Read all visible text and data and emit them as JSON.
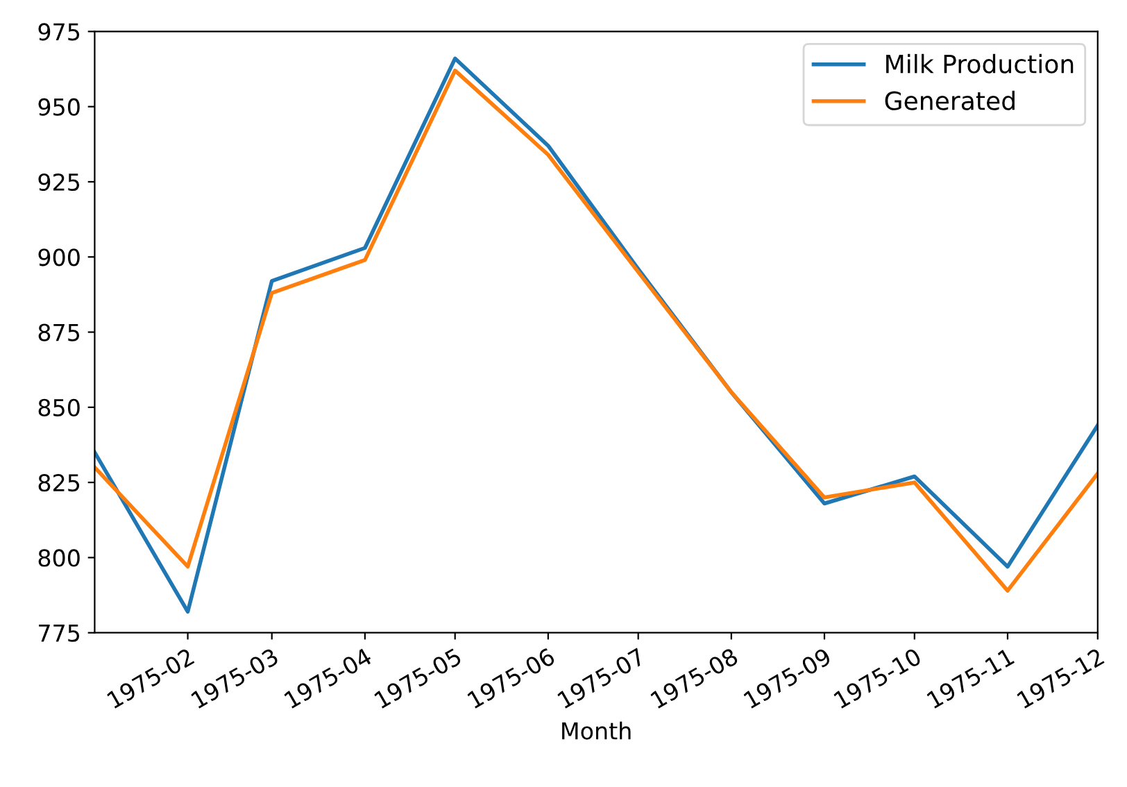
{
  "chart_data": {
    "type": "line",
    "xlabel": "Month",
    "x": [
      "1975-01",
      "1975-02",
      "1975-03",
      "1975-04",
      "1975-05",
      "1975-06",
      "1975-07",
      "1975-08",
      "1975-09",
      "1975-10",
      "1975-11",
      "1975-12"
    ],
    "series": [
      {
        "name": "Milk Production",
        "color": "#1f77b4",
        "values": [
          835,
          782,
          892,
          903,
          966,
          937,
          896,
          855,
          818,
          827,
          797,
          844
        ]
      },
      {
        "name": "Generated",
        "color": "#ff7f0e",
        "values": [
          830,
          797,
          888,
          899,
          962,
          934,
          895,
          855,
          820,
          825,
          789,
          828
        ]
      }
    ],
    "xlim": [
      "1975-01",
      "1975-12"
    ],
    "xticks": [
      "1975-02",
      "1975-03",
      "1975-04",
      "1975-05",
      "1975-06",
      "1975-07",
      "1975-08",
      "1975-09",
      "1975-10",
      "1975-11",
      "1975-12"
    ],
    "ylim": [
      775,
      975
    ],
    "yticks": [
      775,
      800,
      825,
      850,
      875,
      900,
      925,
      950,
      975
    ],
    "legend": "top right",
    "grid": false
  }
}
